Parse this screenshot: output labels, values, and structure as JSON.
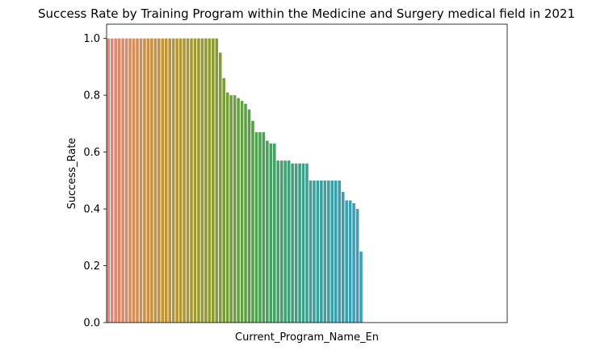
{
  "chart_data": {
    "type": "bar",
    "title": "Success Rate by Training Program within the Medicine and Surgery medical field in 2021",
    "xlabel": "Current_Program_Name_En",
    "ylabel": "Success_Rate",
    "ylim": [
      0,
      1.05
    ],
    "yticks": [
      "0.0",
      "0.2",
      "0.4",
      "0.6",
      "0.8",
      "1.0"
    ],
    "grid": false,
    "legend": "none",
    "total_categories": 111,
    "values": [
      1.0,
      1.0,
      1.0,
      1.0,
      1.0,
      1.0,
      1.0,
      1.0,
      1.0,
      1.0,
      1.0,
      1.0,
      1.0,
      1.0,
      1.0,
      1.0,
      1.0,
      1.0,
      1.0,
      1.0,
      1.0,
      1.0,
      1.0,
      1.0,
      1.0,
      1.0,
      1.0,
      1.0,
      1.0,
      1.0,
      1.0,
      0.95,
      0.86,
      0.81,
      0.8,
      0.8,
      0.79,
      0.78,
      0.77,
      0.75,
      0.71,
      0.67,
      0.67,
      0.67,
      0.64,
      0.63,
      0.63,
      0.57,
      0.57,
      0.57,
      0.57,
      0.56,
      0.56,
      0.56,
      0.56,
      0.56,
      0.5,
      0.5,
      0.5,
      0.5,
      0.5,
      0.5,
      0.5,
      0.5,
      0.5,
      0.46,
      0.43,
      0.43,
      0.42,
      0.4,
      0.25,
      0,
      0,
      0,
      0,
      0,
      0,
      0,
      0,
      0,
      0,
      0,
      0,
      0,
      0,
      0,
      0,
      0,
      0,
      0,
      0,
      0,
      0,
      0,
      0,
      0,
      0,
      0,
      0,
      0,
      0,
      0,
      0,
      0,
      0,
      0,
      0,
      0,
      0,
      0,
      0
    ],
    "palette_stops": [
      "#e1877a",
      "#c89236",
      "#8f9c2e",
      "#4aa150",
      "#3aa095",
      "#3b9fbd"
    ]
  }
}
